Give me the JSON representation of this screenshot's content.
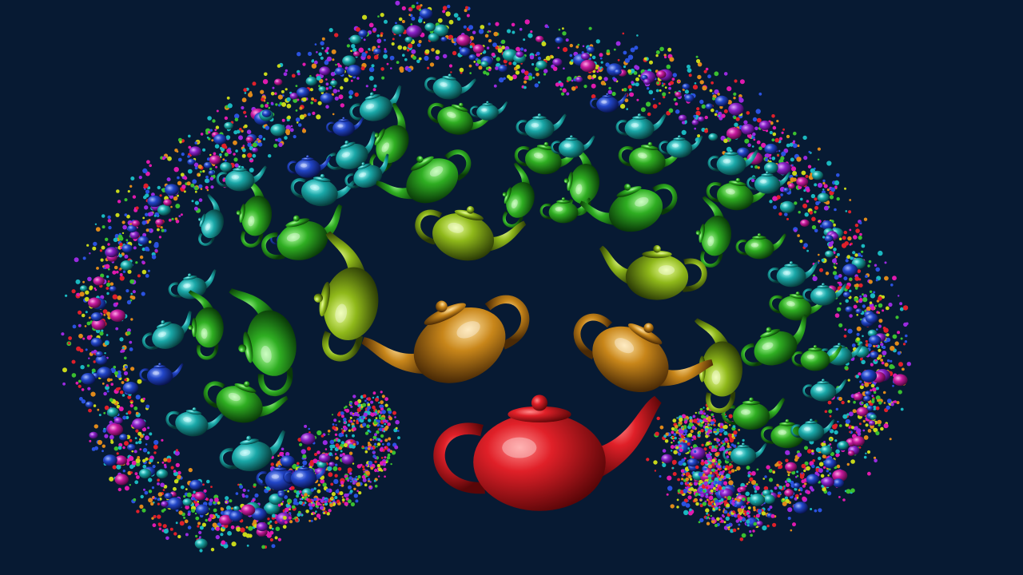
{
  "scene": {
    "background": "#071a33",
    "description_icon": "teapot-fractal-icon"
  },
  "palette": {
    "red": "#c81418",
    "orange": "#c8861a",
    "yellowgreen": "#9ec21a",
    "green": "#2fae22",
    "teal": "#1aa8a8",
    "blue": "#2246c8",
    "purple": "#8a22c8",
    "magenta": "#c81a9e"
  }
}
